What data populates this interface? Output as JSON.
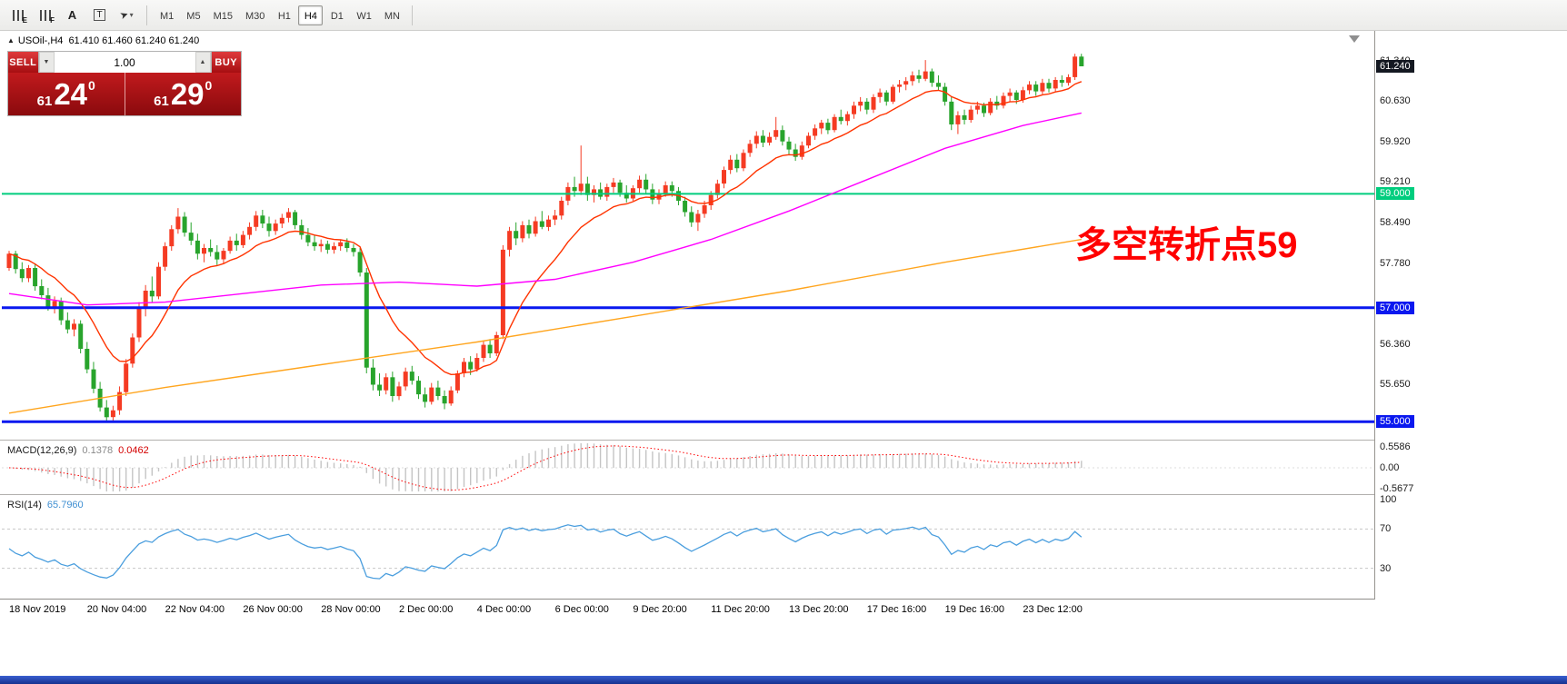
{
  "toolbar": {
    "icons": [
      {
        "name": "indicator-e-icon",
        "style": "bars",
        "letter": "E"
      },
      {
        "name": "indicator-f-icon",
        "style": "bars",
        "letter": "F"
      },
      {
        "name": "text-tool-icon",
        "style": "letter",
        "letter": "A"
      },
      {
        "name": "label-tool-icon",
        "style": "boxed",
        "letter": "T"
      },
      {
        "name": "cursor-tool-icon",
        "style": "cursor",
        "letter": "➤",
        "caret": "▾"
      }
    ],
    "timeframes": [
      "M1",
      "M5",
      "M15",
      "M30",
      "H1",
      "H4",
      "D1",
      "W1",
      "MN"
    ],
    "active_timeframe": "H4"
  },
  "symbol_header": {
    "collapse_icon": "▲",
    "symbol": "USOil-,H4",
    "ohlc_text": "61.410 61.460 61.240 61.240"
  },
  "trade_panel": {
    "sell_label": "SELL",
    "buy_label": "BUY",
    "volume": "1.00",
    "spin_down": "▼",
    "spin_up": "▲",
    "bid": {
      "small": "61",
      "big": "24",
      "sup": "0"
    },
    "ask": {
      "small": "61",
      "big": "29",
      "sup": "0"
    }
  },
  "annotation": {
    "text": "多空转折点59",
    "color": "#ff0000"
  },
  "price_axis": {
    "ticks": [
      {
        "label": "61.340",
        "price": 61.34
      },
      {
        "label": "60.630",
        "price": 60.63
      },
      {
        "label": "59.920",
        "price": 59.92
      },
      {
        "label": "59.210",
        "price": 59.21
      },
      {
        "label": "58.490",
        "price": 58.49
      },
      {
        "label": "57.780",
        "price": 57.78
      },
      {
        "label": "56.360",
        "price": 56.36
      },
      {
        "label": "55.650",
        "price": 55.65
      }
    ]
  },
  "macd_panel": {
    "label": "MACD(12,26,9)",
    "value_main": "0.1378",
    "value_signal": "0.0462",
    "axis": [
      {
        "label": "0.5586",
        "value": 0.5586
      },
      {
        "label": "0.00",
        "value": 0
      },
      {
        "label": "-0.5677",
        "value": -0.5677
      }
    ]
  },
  "rsi_panel": {
    "label": "RSI(14)",
    "value": "65.7960",
    "axis": [
      {
        "label": "100",
        "value": 100
      },
      {
        "label": "70",
        "value": 70
      },
      {
        "label": "30",
        "value": 30
      }
    ],
    "levels": [
      70,
      30
    ]
  },
  "chart_data": {
    "type": "candlestick",
    "symbol": "USOil-",
    "timeframe": "H4",
    "title": "USOil-,H4 61.410 61.460 61.240 61.240",
    "up_color": "#f53b23",
    "down_color": "#28a42c",
    "ylim": [
      54.7,
      61.9
    ],
    "current_price": {
      "price": 61.24,
      "label": "61.240",
      "chip_bg": "#141821"
    },
    "hlines": [
      {
        "label": "59.000",
        "price": 59.0,
        "color": "#00cd7e",
        "width": 2
      },
      {
        "label": "57.000",
        "price": 57.0,
        "color": "#0a18ef",
        "width": 3
      },
      {
        "label": "55.000",
        "price": 55.0,
        "color": "#0a18ef",
        "width": 3
      }
    ],
    "overlays": [
      {
        "name": "ma-fast",
        "type": "ema",
        "period": 13,
        "color": "#ff3300"
      },
      {
        "name": "ma-mid",
        "type": "points",
        "color": "#ff00ff",
        "bars": [
          0,
          12,
          24,
          36,
          48,
          60,
          72,
          84,
          96,
          108,
          120,
          132,
          144,
          156,
          165
        ],
        "prices": [
          57.25,
          57.05,
          57.1,
          57.25,
          57.4,
          57.45,
          57.38,
          57.5,
          57.8,
          58.2,
          58.7,
          59.25,
          59.8,
          60.2,
          60.42
        ]
      },
      {
        "name": "ma-slow",
        "type": "points",
        "color": "#ffa51e",
        "bars": [
          0,
          24,
          48,
          72,
          96,
          120,
          144,
          165
        ],
        "prices": [
          55.15,
          55.6,
          56.0,
          56.4,
          56.85,
          57.3,
          57.8,
          58.2
        ]
      }
    ],
    "indicators": [
      {
        "name": "MACD",
        "fast": 12,
        "slow": 26,
        "signal": 9,
        "current_main": 0.1378,
        "current_signal": 0.0462,
        "hist_color": "#c4c4c4",
        "signal_color": "#ff0000"
      },
      {
        "name": "RSI",
        "period": 14,
        "current": 65.796,
        "color": "#4a9ede",
        "levels": [
          70,
          30
        ]
      }
    ],
    "time_labels": [
      {
        "bar": 0,
        "label": "18 Nov 2019"
      },
      {
        "bar": 12,
        "label": "20 Nov 04:00"
      },
      {
        "bar": 24,
        "label": "22 Nov 04:00"
      },
      {
        "bar": 36,
        "label": "26 Nov 00:00"
      },
      {
        "bar": 48,
        "label": "28 Nov 00:00"
      },
      {
        "bar": 60,
        "label": "2 Dec 00:00"
      },
      {
        "bar": 72,
        "label": "4 Dec 00:00"
      },
      {
        "bar": 84,
        "label": "6 Dec 00:00"
      },
      {
        "bar": 96,
        "label": "9 Dec 20:00"
      },
      {
        "bar": 108,
        "label": "11 Dec 20:00"
      },
      {
        "bar": 120,
        "label": "13 Dec 20:00"
      },
      {
        "bar": 132,
        "label": "17 Dec 16:00"
      },
      {
        "bar": 144,
        "label": "19 Dec 16:00"
      },
      {
        "bar": 156,
        "label": "23 Dec 12:00"
      }
    ],
    "ohlc": [
      [
        57.7,
        58.0,
        57.65,
        57.95
      ],
      [
        57.95,
        58.0,
        57.6,
        57.68
      ],
      [
        57.68,
        57.8,
        57.45,
        57.52
      ],
      [
        57.52,
        57.75,
        57.45,
        57.7
      ],
      [
        57.7,
        57.78,
        57.3,
        57.38
      ],
      [
        57.38,
        57.5,
        57.15,
        57.22
      ],
      [
        57.22,
        57.35,
        56.95,
        57.02
      ],
      [
        57.02,
        57.2,
        56.9,
        57.12
      ],
      [
        57.12,
        57.18,
        56.7,
        56.78
      ],
      [
        56.78,
        56.92,
        56.55,
        56.62
      ],
      [
        56.62,
        56.8,
        56.5,
        56.72
      ],
      [
        56.72,
        56.78,
        56.2,
        56.28
      ],
      [
        56.28,
        56.4,
        55.85,
        55.92
      ],
      [
        55.92,
        56.05,
        55.5,
        55.58
      ],
      [
        55.58,
        55.7,
        55.18,
        55.25
      ],
      [
        55.25,
        55.38,
        55.0,
        55.08
      ],
      [
        55.08,
        55.28,
        55.02,
        55.2
      ],
      [
        55.2,
        55.62,
        55.12,
        55.52
      ],
      [
        55.52,
        56.1,
        55.45,
        56.02
      ],
      [
        56.02,
        56.55,
        55.95,
        56.48
      ],
      [
        56.48,
        57.1,
        56.4,
        57.02
      ],
      [
        57.02,
        57.4,
        56.85,
        57.3
      ],
      [
        57.3,
        57.55,
        57.1,
        57.2
      ],
      [
        57.2,
        57.8,
        57.15,
        57.72
      ],
      [
        57.72,
        58.15,
        57.65,
        58.08
      ],
      [
        58.08,
        58.45,
        58.0,
        58.38
      ],
      [
        58.38,
        58.75,
        58.3,
        58.6
      ],
      [
        58.6,
        58.68,
        58.25,
        58.32
      ],
      [
        58.32,
        58.5,
        58.1,
        58.18
      ],
      [
        58.18,
        58.3,
        57.85,
        57.95
      ],
      [
        57.95,
        58.12,
        57.8,
        58.05
      ],
      [
        58.05,
        58.2,
        57.9,
        57.98
      ],
      [
        57.98,
        58.1,
        57.75,
        57.85
      ],
      [
        57.85,
        58.05,
        57.78,
        58.0
      ],
      [
        58.0,
        58.25,
        57.95,
        58.18
      ],
      [
        58.18,
        58.3,
        58.0,
        58.1
      ],
      [
        58.1,
        58.35,
        58.05,
        58.28
      ],
      [
        58.28,
        58.5,
        58.2,
        58.42
      ],
      [
        58.42,
        58.7,
        58.35,
        58.62
      ],
      [
        58.62,
        58.72,
        58.4,
        58.48
      ],
      [
        58.48,
        58.6,
        58.25,
        58.35
      ],
      [
        58.35,
        58.55,
        58.28,
        58.48
      ],
      [
        58.48,
        58.65,
        58.4,
        58.58
      ],
      [
        58.58,
        58.75,
        58.5,
        58.68
      ],
      [
        58.68,
        58.72,
        58.38,
        58.45
      ],
      [
        58.45,
        58.55,
        58.2,
        58.28
      ],
      [
        58.28,
        58.4,
        58.08,
        58.15
      ],
      [
        58.15,
        58.28,
        58.0,
        58.08
      ],
      [
        58.08,
        58.2,
        57.98,
        58.12
      ],
      [
        58.12,
        58.18,
        57.95,
        58.02
      ],
      [
        58.02,
        58.15,
        57.95,
        58.08
      ],
      [
        58.08,
        58.2,
        58.0,
        58.15
      ],
      [
        58.15,
        58.22,
        57.98,
        58.05
      ],
      [
        58.05,
        58.12,
        57.9,
        57.98
      ],
      [
        57.98,
        58.05,
        57.55,
        57.62
      ],
      [
        57.62,
        57.7,
        55.85,
        55.95
      ],
      [
        55.95,
        56.1,
        55.55,
        55.65
      ],
      [
        55.65,
        55.85,
        55.45,
        55.55
      ],
      [
        55.55,
        55.85,
        55.48,
        55.78
      ],
      [
        55.78,
        55.88,
        55.35,
        55.45
      ],
      [
        55.45,
        55.7,
        55.38,
        55.62
      ],
      [
        55.62,
        55.95,
        55.55,
        55.88
      ],
      [
        55.88,
        55.98,
        55.65,
        55.72
      ],
      [
        55.72,
        55.8,
        55.4,
        55.48
      ],
      [
        55.48,
        55.6,
        55.25,
        55.35
      ],
      [
        55.35,
        55.68,
        55.3,
        55.6
      ],
      [
        55.6,
        55.72,
        55.38,
        55.45
      ],
      [
        55.45,
        55.55,
        55.22,
        55.32
      ],
      [
        55.32,
        55.62,
        55.28,
        55.55
      ],
      [
        55.55,
        55.9,
        55.5,
        55.85
      ],
      [
        55.85,
        56.12,
        55.78,
        56.05
      ],
      [
        56.05,
        56.15,
        55.82,
        55.92
      ],
      [
        55.92,
        56.2,
        55.88,
        56.12
      ],
      [
        56.12,
        56.42,
        56.05,
        56.35
      ],
      [
        56.35,
        56.45,
        56.12,
        56.2
      ],
      [
        56.2,
        56.58,
        56.15,
        56.52
      ],
      [
        56.52,
        58.1,
        56.45,
        58.02
      ],
      [
        58.02,
        58.42,
        57.9,
        58.35
      ],
      [
        58.35,
        58.5,
        58.1,
        58.22
      ],
      [
        58.22,
        58.52,
        58.15,
        58.45
      ],
      [
        58.45,
        58.55,
        58.22,
        58.3
      ],
      [
        58.3,
        58.6,
        58.25,
        58.52
      ],
      [
        58.52,
        58.7,
        58.38,
        58.42
      ],
      [
        58.42,
        58.62,
        58.35,
        58.55
      ],
      [
        58.55,
        58.72,
        58.45,
        58.62
      ],
      [
        58.62,
        58.95,
        58.55,
        58.88
      ],
      [
        58.88,
        59.2,
        58.8,
        59.12
      ],
      [
        59.12,
        59.3,
        58.95,
        59.05
      ],
      [
        59.05,
        59.85,
        58.98,
        59.18
      ],
      [
        59.18,
        59.3,
        58.88,
        58.98
      ],
      [
        58.98,
        59.15,
        58.85,
        59.08
      ],
      [
        59.08,
        59.2,
        58.9,
        58.95
      ],
      [
        58.95,
        59.18,
        58.88,
        59.12
      ],
      [
        59.12,
        59.28,
        59.02,
        59.2
      ],
      [
        59.2,
        59.25,
        58.95,
        59.02
      ],
      [
        59.02,
        59.15,
        58.85,
        58.92
      ],
      [
        58.92,
        59.15,
        58.88,
        59.1
      ],
      [
        59.1,
        59.32,
        59.02,
        59.25
      ],
      [
        59.25,
        59.35,
        59.0,
        59.08
      ],
      [
        59.08,
        59.18,
        58.82,
        58.9
      ],
      [
        58.9,
        59.08,
        58.82,
        59.0
      ],
      [
        59.0,
        59.22,
        58.95,
        59.15
      ],
      [
        59.15,
        59.22,
        58.95,
        59.05
      ],
      [
        59.05,
        59.12,
        58.8,
        58.88
      ],
      [
        58.88,
        58.95,
        58.6,
        58.68
      ],
      [
        58.68,
        58.78,
        58.42,
        58.5
      ],
      [
        58.5,
        58.72,
        58.35,
        58.65
      ],
      [
        58.65,
        58.88,
        58.58,
        58.8
      ],
      [
        58.8,
        59.05,
        58.72,
        58.98
      ],
      [
        58.98,
        59.25,
        58.92,
        59.18
      ],
      [
        59.18,
        59.48,
        59.1,
        59.42
      ],
      [
        59.42,
        59.68,
        59.35,
        59.6
      ],
      [
        59.6,
        59.7,
        59.38,
        59.45
      ],
      [
        59.45,
        59.78,
        59.4,
        59.72
      ],
      [
        59.72,
        59.95,
        59.65,
        59.88
      ],
      [
        59.88,
        60.1,
        59.8,
        60.02
      ],
      [
        60.02,
        60.12,
        59.82,
        59.9
      ],
      [
        59.9,
        60.08,
        59.85,
        60.0
      ],
      [
        60.0,
        60.35,
        59.95,
        60.12
      ],
      [
        60.12,
        60.2,
        59.85,
        59.92
      ],
      [
        59.92,
        60.0,
        59.68,
        59.78
      ],
      [
        59.78,
        59.88,
        59.58,
        59.65
      ],
      [
        59.65,
        59.92,
        59.6,
        59.85
      ],
      [
        59.85,
        60.08,
        59.8,
        60.02
      ],
      [
        60.02,
        60.22,
        59.95,
        60.15
      ],
      [
        60.15,
        60.3,
        60.05,
        60.25
      ],
      [
        60.25,
        60.32,
        60.05,
        60.12
      ],
      [
        60.12,
        60.4,
        60.08,
        60.35
      ],
      [
        60.35,
        60.48,
        60.22,
        60.28
      ],
      [
        60.28,
        60.45,
        60.2,
        60.4
      ],
      [
        60.4,
        60.62,
        60.32,
        60.55
      ],
      [
        60.55,
        60.7,
        60.45,
        60.62
      ],
      [
        60.62,
        60.68,
        60.4,
        60.48
      ],
      [
        60.48,
        60.75,
        60.42,
        60.7
      ],
      [
        60.7,
        60.85,
        60.6,
        60.78
      ],
      [
        60.78,
        60.82,
        60.55,
        60.62
      ],
      [
        60.62,
        60.92,
        60.58,
        60.88
      ],
      [
        60.88,
        61.0,
        60.78,
        60.92
      ],
      [
        60.92,
        61.05,
        60.82,
        60.98
      ],
      [
        60.98,
        61.15,
        60.9,
        61.08
      ],
      [
        61.08,
        61.18,
        60.95,
        61.02
      ],
      [
        61.02,
        61.35,
        60.98,
        61.15
      ],
      [
        61.15,
        61.2,
        60.88,
        60.95
      ],
      [
        60.95,
        61.08,
        60.82,
        60.88
      ],
      [
        60.88,
        60.95,
        60.55,
        60.62
      ],
      [
        60.62,
        60.7,
        60.12,
        60.22
      ],
      [
        60.22,
        60.45,
        60.05,
        60.38
      ],
      [
        60.38,
        60.48,
        60.22,
        60.3
      ],
      [
        60.3,
        60.55,
        60.25,
        60.48
      ],
      [
        60.48,
        60.62,
        60.4,
        60.55
      ],
      [
        60.55,
        60.6,
        60.35,
        60.42
      ],
      [
        60.42,
        60.68,
        60.38,
        60.62
      ],
      [
        60.62,
        60.72,
        60.48,
        60.55
      ],
      [
        60.55,
        60.78,
        60.5,
        60.72
      ],
      [
        60.72,
        60.85,
        60.62,
        60.78
      ],
      [
        60.78,
        60.82,
        60.58,
        60.65
      ],
      [
        60.65,
        60.88,
        60.6,
        60.82
      ],
      [
        60.82,
        60.98,
        60.75,
        60.92
      ],
      [
        60.92,
        60.98,
        60.72,
        60.8
      ],
      [
        60.8,
        61.02,
        60.75,
        60.95
      ],
      [
        60.95,
        61.02,
        60.78,
        60.85
      ],
      [
        60.85,
        61.05,
        60.8,
        61.0
      ],
      [
        61.0,
        61.08,
        60.88,
        60.95
      ],
      [
        60.95,
        61.1,
        60.9,
        61.05
      ],
      [
        61.05,
        61.46,
        61.0,
        61.41
      ],
      [
        61.41,
        61.46,
        61.24,
        61.24
      ]
    ]
  }
}
